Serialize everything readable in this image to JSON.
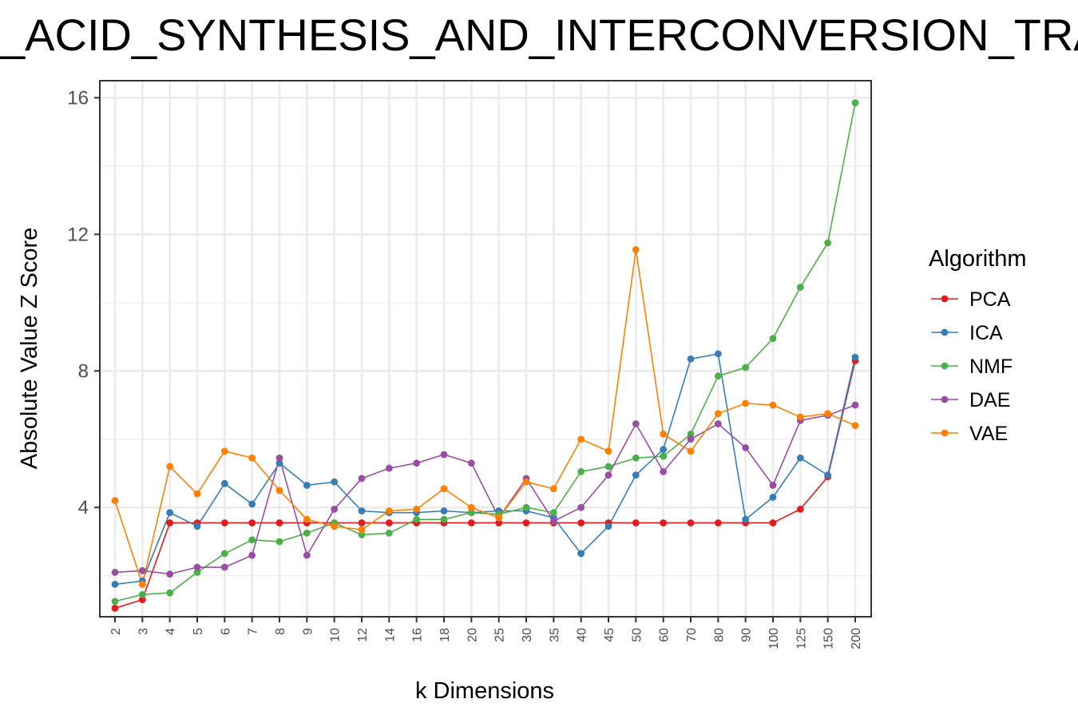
{
  "chart_data": {
    "type": "line",
    "title": "_ACID_SYNTHESIS_AND_INTERCONVERSION_TRA",
    "xlabel": "k Dimensions",
    "ylabel": "Absolute Value Z Score",
    "categories": [
      "2",
      "3",
      "4",
      "5",
      "6",
      "7",
      "8",
      "9",
      "10",
      "12",
      "14",
      "16",
      "18",
      "20",
      "25",
      "30",
      "35",
      "40",
      "45",
      "50",
      "60",
      "70",
      "80",
      "90",
      "100",
      "125",
      "150",
      "200"
    ],
    "ylim": [
      0.8,
      16.5
    ],
    "yticks": [
      4,
      8,
      12,
      16
    ],
    "grid": true,
    "legend": {
      "title": "Algorithm",
      "position": "right"
    },
    "series": [
      {
        "name": "PCA",
        "color": "#e41a1c",
        "values": [
          1.05,
          1.3,
          3.55,
          3.55,
          3.55,
          3.55,
          3.55,
          3.55,
          3.55,
          3.55,
          3.55,
          3.55,
          3.55,
          3.55,
          3.55,
          3.55,
          3.55,
          3.55,
          3.55,
          3.55,
          3.55,
          3.55,
          3.55,
          3.55,
          3.55,
          3.95,
          4.9,
          8.3
        ]
      },
      {
        "name": "ICA",
        "color": "#377eb8",
        "values": [
          1.75,
          1.85,
          3.85,
          3.45,
          4.7,
          4.1,
          5.3,
          4.65,
          4.75,
          3.9,
          3.85,
          3.85,
          3.9,
          3.85,
          3.9,
          3.9,
          3.7,
          2.65,
          3.45,
          4.95,
          5.7,
          8.35,
          8.5,
          3.65,
          4.3,
          5.45,
          4.95,
          8.4
        ]
      },
      {
        "name": "NMF",
        "color": "#4daf4a",
        "values": [
          1.25,
          1.45,
          1.5,
          2.1,
          2.65,
          3.05,
          3.0,
          3.25,
          3.55,
          3.2,
          3.25,
          3.65,
          3.65,
          3.85,
          3.8,
          4.0,
          3.85,
          5.05,
          5.2,
          5.45,
          5.5,
          6.15,
          7.85,
          8.1,
          8.95,
          10.45,
          11.75,
          15.85
        ]
      },
      {
        "name": "DAE",
        "color": "#984ea3",
        "values": [
          2.1,
          2.15,
          2.05,
          2.25,
          2.25,
          2.6,
          5.45,
          2.6,
          3.95,
          4.85,
          5.15,
          5.3,
          5.55,
          5.3,
          3.7,
          4.85,
          3.6,
          4.0,
          4.95,
          6.45,
          5.05,
          6.0,
          6.45,
          5.75,
          4.65,
          6.55,
          6.7,
          7.0
        ]
      },
      {
        "name": "VAE",
        "color": "#ff7f00",
        "values": [
          4.2,
          1.75,
          5.2,
          4.4,
          5.65,
          5.45,
          4.5,
          3.65,
          3.45,
          3.35,
          3.9,
          3.95,
          4.55,
          4.0,
          3.7,
          4.75,
          4.55,
          6.0,
          5.65,
          11.55,
          6.15,
          5.65,
          6.75,
          7.05,
          7.0,
          6.65,
          6.75,
          6.4
        ]
      }
    ]
  }
}
